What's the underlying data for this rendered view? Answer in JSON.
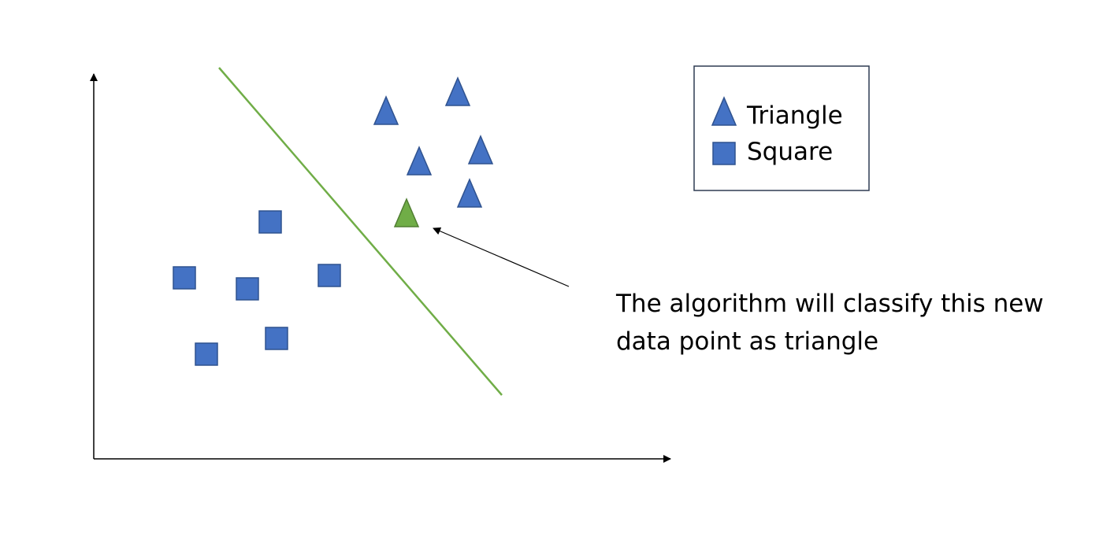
{
  "colors": {
    "shape_fill": "#4472c4",
    "shape_stroke": "#2f528f",
    "new_point_fill": "#70ad47",
    "new_point_stroke": "#507e32",
    "boundary_line": "#70ad47",
    "axis": "#000000",
    "legend_border": "#2f3b52"
  },
  "legend": {
    "triangle_label": "Triangle",
    "square_label": "Square",
    "triangle_icon": "triangle-icon",
    "square_icon": "square-icon"
  },
  "annotation": {
    "line1": "The algorithm will classify this new",
    "line2": "data point as triangle"
  }
}
